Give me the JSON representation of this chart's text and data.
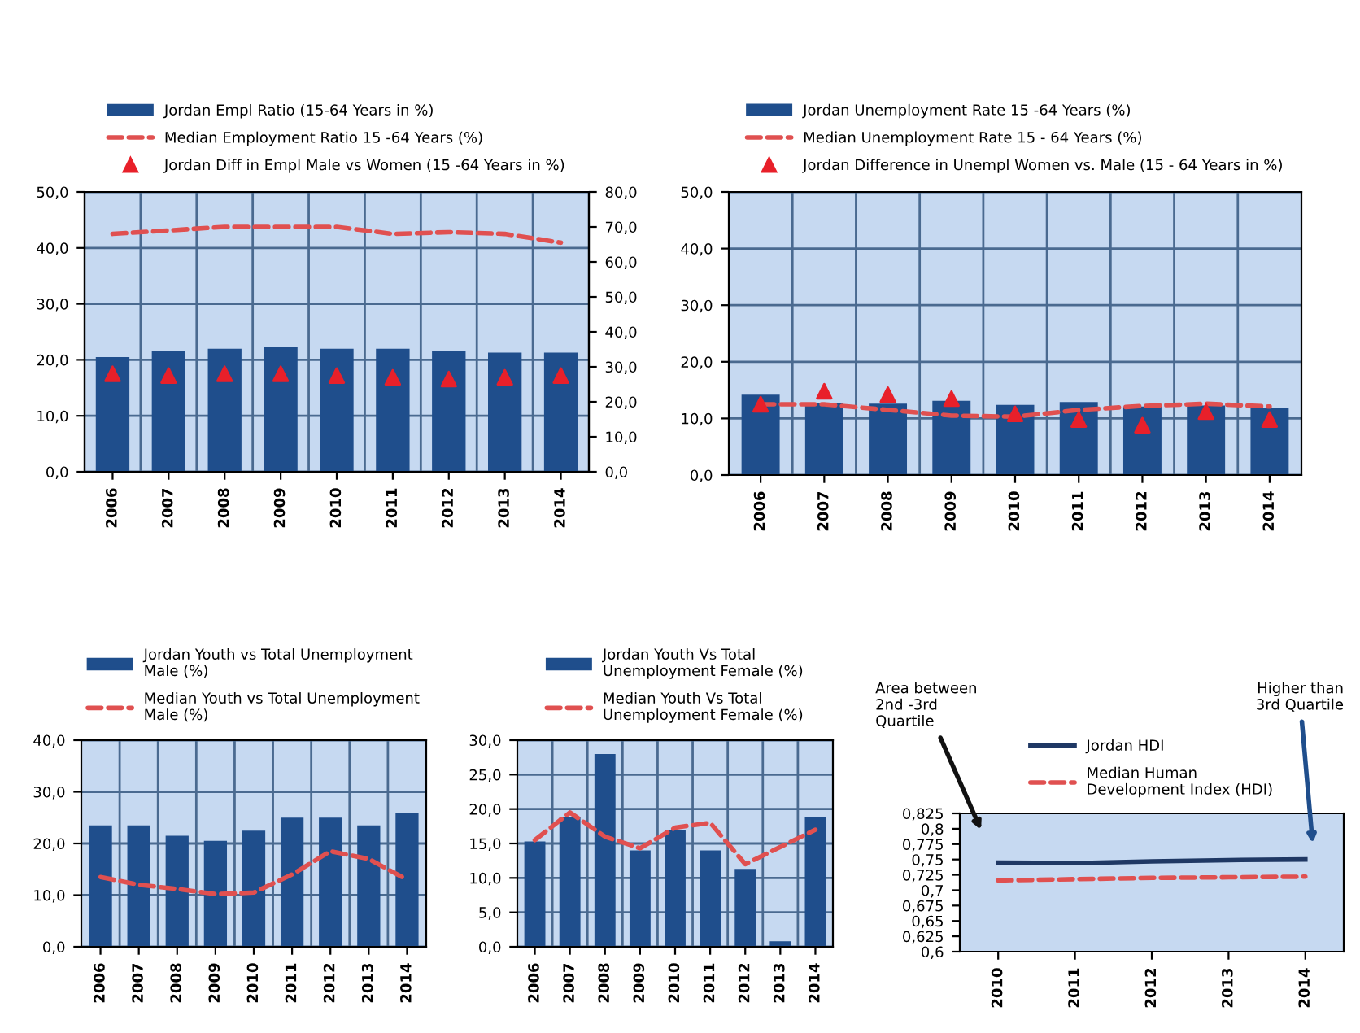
{
  "chart_data": [
    {
      "type": "bar",
      "categories": [
        "2006",
        "2007",
        "2008",
        "2009",
        "2010",
        "2011",
        "2012",
        "2013",
        "2014"
      ],
      "ylim": [
        0,
        50
      ],
      "yticks": [
        {
          "value": 0,
          "label": "0,0"
        },
        {
          "value": 10,
          "label": "10,0"
        },
        {
          "value": 20,
          "label": "20,0"
        },
        {
          "value": 30,
          "label": "30,0"
        },
        {
          "value": 40,
          "label": "40,0"
        },
        {
          "value": 50,
          "label": "50,0"
        }
      ],
      "y2lim": [
        0,
        80
      ],
      "y2ticks": [
        {
          "value": 0,
          "label": "0,0"
        },
        {
          "value": 10,
          "label": "10,0"
        },
        {
          "value": 20,
          "label": "20,0"
        },
        {
          "value": 30,
          "label": "30,0"
        },
        {
          "value": 40,
          "label": "40,0"
        },
        {
          "value": 50,
          "label": "50,0"
        },
        {
          "value": 60,
          "label": "60,0"
        },
        {
          "value": 70,
          "label": "70,0"
        },
        {
          "value": 80,
          "label": "80,0"
        }
      ],
      "grid": true,
      "legend": "top",
      "series": [
        {
          "name": "Jordan Empl Ratio (15-64 Years in %)",
          "color": "#1f4e8c",
          "values": [
            20.5,
            21.5,
            22,
            22.3,
            22,
            22,
            21.5,
            21.3,
            21.3
          ]
        },
        {
          "type": "line",
          "axis": "y2",
          "name": "Median Employment Ratio 15 -64 Years (%)",
          "color": "#e05050",
          "line_style": "dashed",
          "values": [
            68,
            69,
            70,
            70,
            70,
            68,
            68.5,
            68,
            65.5
          ]
        },
        {
          "type": "scatter",
          "axis": "y2",
          "name": "Jordan Diff in Empl Male vs Women (15 -64 Years in %)",
          "color": "#e8202a",
          "marker": "triangle",
          "values": [
            28,
            27.5,
            28,
            28,
            27.5,
            27,
            26.5,
            27,
            27.5
          ]
        }
      ]
    },
    {
      "type": "bar",
      "categories": [
        "2006",
        "2007",
        "2008",
        "2009",
        "2010",
        "2011",
        "2012",
        "2013",
        "2014"
      ],
      "ylim": [
        0,
        50
      ],
      "yticks": [
        {
          "value": 0,
          "label": "0,0"
        },
        {
          "value": 10,
          "label": "10,0"
        },
        {
          "value": 20,
          "label": "20,0"
        },
        {
          "value": 30,
          "label": "30,0"
        },
        {
          "value": 40,
          "label": "40,0"
        },
        {
          "value": 50,
          "label": "50,0"
        }
      ],
      "grid": true,
      "legend": "top",
      "series": [
        {
          "name": "Jordan Unemployment Rate 15 -64 Years (%)",
          "color": "#1f4e8c",
          "values": [
            14.2,
            12.8,
            12.6,
            13.1,
            12.4,
            12.9,
            12.1,
            12.3,
            11.9
          ]
        },
        {
          "type": "line",
          "name": "Median Unemployment Rate 15 - 64 Years (%)",
          "color": "#e05050",
          "line_style": "dashed",
          "values": [
            12.5,
            12.5,
            11.5,
            10.5,
            10.3,
            11.5,
            12.2,
            12.6,
            12.1
          ]
        },
        {
          "type": "scatter",
          "name": "Jordan Difference in Unempl Women vs. Male (15 - 64 Years in %)",
          "color": "#e8202a",
          "marker": "triangle",
          "values": [
            12.5,
            14.8,
            14.2,
            13.5,
            10.8,
            9.8,
            8.8,
            11.2,
            9.8
          ]
        }
      ]
    },
    {
      "type": "bar",
      "categories": [
        "2006",
        "2007",
        "2008",
        "2009",
        "2010",
        "2011",
        "2012",
        "2013",
        "2014"
      ],
      "ylim": [
        0,
        40
      ],
      "yticks": [
        {
          "value": 0,
          "label": "0,0"
        },
        {
          "value": 10,
          "label": "10,0"
        },
        {
          "value": 20,
          "label": "20,0"
        },
        {
          "value": 30,
          "label": "30,0"
        },
        {
          "value": 40,
          "label": "40,0"
        }
      ],
      "grid": true,
      "legend": "top",
      "series": [
        {
          "name": "Jordan Youth vs Total Unemployment Male (%)",
          "color": "#1f4e8c",
          "values": [
            23.5,
            23.5,
            21.5,
            20.5,
            22.5,
            25,
            25,
            23.5,
            26
          ]
        },
        {
          "type": "line",
          "name": "Median Youth vs Total Unemployment Male (%)",
          "color": "#e05050",
          "line_style": "dashed",
          "values": [
            13.5,
            12,
            11.2,
            10.2,
            10.5,
            14,
            18.5,
            17,
            13
          ]
        }
      ]
    },
    {
      "type": "bar",
      "categories": [
        "2006",
        "2007",
        "2008",
        "2009",
        "2010",
        "2011",
        "2012",
        "2013",
        "2014"
      ],
      "ylim": [
        0,
        30
      ],
      "yticks": [
        {
          "value": 0,
          "label": "0,0"
        },
        {
          "value": 5,
          "label": "5,0"
        },
        {
          "value": 10,
          "label": "10,0"
        },
        {
          "value": 15,
          "label": "15,0"
        },
        {
          "value": 20,
          "label": "20,0"
        },
        {
          "value": 25,
          "label": "25,0"
        },
        {
          "value": 30,
          "label": "30,0"
        }
      ],
      "grid": true,
      "legend": "top",
      "series": [
        {
          "name": "Jordan Youth Vs Total Unemployment Female (%)",
          "color": "#1f4e8c",
          "values": [
            15.3,
            18.8,
            28,
            14,
            17,
            14,
            11.3,
            0.8,
            18.8
          ]
        },
        {
          "type": "line",
          "name": "Median Youth Vs Total Unemployment Female (%)",
          "color": "#e05050",
          "line_style": "dashed",
          "values": [
            15.5,
            19.5,
            16,
            14.3,
            17.3,
            18,
            12,
            14.5,
            17
          ]
        }
      ]
    },
    {
      "type": "line",
      "categories": [
        "2010",
        "2011",
        "2012",
        "2013",
        "2014"
      ],
      "ylim": [
        0.6,
        0.825
      ],
      "yticks": [
        {
          "value": 0.6,
          "label": "0,6"
        },
        {
          "value": 0.625,
          "label": "0,625"
        },
        {
          "value": 0.65,
          "label": "0,65"
        },
        {
          "value": 0.675,
          "label": "0,675"
        },
        {
          "value": 0.7,
          "label": "0,7"
        },
        {
          "value": 0.725,
          "label": "0,725"
        },
        {
          "value": 0.75,
          "label": "0,75"
        },
        {
          "value": 0.775,
          "label": "0,775"
        },
        {
          "value": 0.8,
          "label": "0,8"
        },
        {
          "value": 0.825,
          "label": "0,825"
        }
      ],
      "grid": false,
      "legend": "top",
      "annotations": [
        "Area between 2nd -3rd Quartile",
        "Higher than 3rd Quartile"
      ],
      "series": [
        {
          "name": "Jordan HDI",
          "color": "#1f3864",
          "line_style": "solid",
          "values": [
            0.745,
            0.744,
            0.747,
            0.749,
            0.75
          ]
        },
        {
          "name": "Median Human Development Index (HDI)",
          "color": "#e05050",
          "line_style": "dashed",
          "values": [
            0.716,
            0.718,
            0.72,
            0.721,
            0.722
          ]
        }
      ]
    }
  ]
}
